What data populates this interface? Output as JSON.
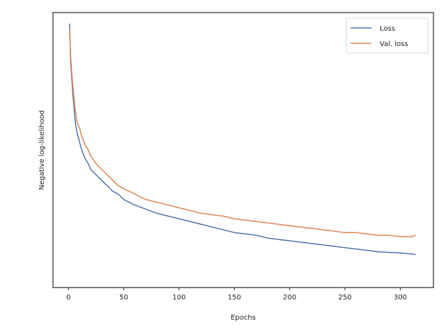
{
  "chart_data": {
    "type": "line",
    "title": "",
    "xlabel": "Epochs",
    "ylabel": "Negative log-likelihood",
    "xlim": [
      -14,
      330
    ],
    "ylim": [
      0.0,
      1.0
    ],
    "y_ticks_shown": false,
    "x_ticks": [
      0,
      50,
      100,
      150,
      200,
      250,
      300
    ],
    "grid": false,
    "legend_position": "top-right",
    "series": [
      {
        "name": "Loss",
        "color": "#4c72b0",
        "x": [
          1,
          2,
          3,
          4,
          5,
          6,
          7,
          8,
          10,
          12,
          15,
          18,
          20,
          25,
          30,
          35,
          40,
          45,
          50,
          55,
          60,
          70,
          80,
          90,
          100,
          110,
          120,
          130,
          140,
          150,
          160,
          170,
          180,
          190,
          200,
          210,
          220,
          230,
          240,
          250,
          260,
          270,
          280,
          290,
          300,
          310,
          314
        ],
        "y": [
          0.96,
          0.82,
          0.76,
          0.7,
          0.66,
          0.61,
          0.58,
          0.56,
          0.53,
          0.5,
          0.47,
          0.45,
          0.43,
          0.41,
          0.39,
          0.37,
          0.35,
          0.34,
          0.32,
          0.31,
          0.3,
          0.285,
          0.27,
          0.26,
          0.25,
          0.24,
          0.23,
          0.22,
          0.21,
          0.2,
          0.195,
          0.19,
          0.18,
          0.175,
          0.17,
          0.165,
          0.16,
          0.155,
          0.15,
          0.145,
          0.14,
          0.135,
          0.13,
          0.128,
          0.126,
          0.122,
          0.12
        ]
      },
      {
        "name": "Val. loss",
        "color": "#dd8452",
        "x": [
          1,
          2,
          3,
          4,
          5,
          6,
          7,
          8,
          10,
          12,
          15,
          18,
          20,
          25,
          30,
          35,
          40,
          45,
          50,
          55,
          60,
          70,
          80,
          90,
          100,
          110,
          120,
          130,
          140,
          150,
          160,
          170,
          180,
          190,
          200,
          210,
          220,
          230,
          240,
          250,
          260,
          270,
          280,
          290,
          300,
          310,
          314
        ],
        "y": [
          0.94,
          0.84,
          0.78,
          0.73,
          0.69,
          0.65,
          0.62,
          0.6,
          0.58,
          0.55,
          0.52,
          0.5,
          0.48,
          0.45,
          0.43,
          0.41,
          0.39,
          0.37,
          0.36,
          0.35,
          0.34,
          0.32,
          0.31,
          0.3,
          0.29,
          0.28,
          0.27,
          0.265,
          0.26,
          0.25,
          0.245,
          0.24,
          0.235,
          0.23,
          0.225,
          0.22,
          0.215,
          0.21,
          0.205,
          0.2,
          0.2,
          0.195,
          0.19,
          0.19,
          0.185,
          0.185,
          0.19
        ]
      }
    ]
  }
}
